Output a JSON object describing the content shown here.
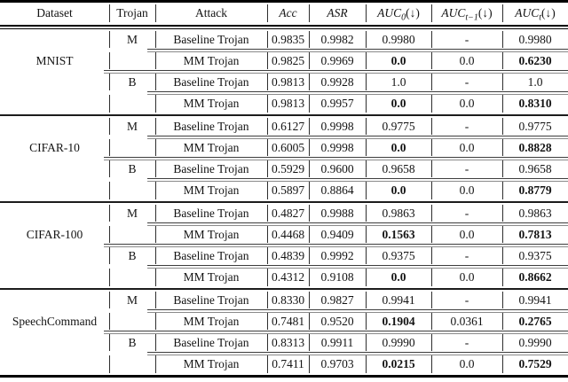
{
  "table": {
    "headers": [
      {
        "key": "dataset",
        "text": "Dataset",
        "italic": false,
        "sub": "",
        "suffix": ""
      },
      {
        "key": "trojan",
        "text": "Trojan",
        "italic": false,
        "sub": "",
        "suffix": ""
      },
      {
        "key": "attack",
        "text": "Attack",
        "italic": false,
        "sub": "",
        "suffix": ""
      },
      {
        "key": "acc",
        "text": "Acc",
        "italic": true,
        "sub": "",
        "suffix": ""
      },
      {
        "key": "asr",
        "text": "ASR",
        "italic": true,
        "sub": "",
        "suffix": ""
      },
      {
        "key": "auc0",
        "text": "AUC",
        "italic": true,
        "sub": "0",
        "suffix": " (↓)"
      },
      {
        "key": "auct1",
        "text": "AUC",
        "italic": true,
        "sub": "t−1",
        "suffix": " (↓)"
      },
      {
        "key": "auct",
        "text": "AUC",
        "italic": true,
        "sub": "t",
        "suffix": " (↓)"
      }
    ],
    "sections": [
      {
        "dataset": "MNIST",
        "groups": [
          {
            "trojan": "M",
            "rows": [
              {
                "attack": "Baseline Trojan",
                "acc": "0.9835",
                "asr": "0.9982",
                "auc0": "0.9980",
                "auct1": "-",
                "auct": "0.9980",
                "bold": []
              },
              {
                "attack": "MM Trojan",
                "acc": "0.9825",
                "asr": "0.9969",
                "auc0": "0.0",
                "auct1": "0.0",
                "auct": "0.6230",
                "bold": [
                  "auc0",
                  "auct"
                ]
              }
            ]
          },
          {
            "trojan": "B",
            "rows": [
              {
                "attack": "Baseline Trojan",
                "acc": "0.9813",
                "asr": "0.9928",
                "auc0": "1.0",
                "auct1": "-",
                "auct": "1.0",
                "bold": []
              },
              {
                "attack": "MM Trojan",
                "acc": "0.9813",
                "asr": "0.9957",
                "auc0": "0.0",
                "auct1": "0.0",
                "auct": "0.8310",
                "bold": [
                  "auc0",
                  "auct"
                ]
              }
            ]
          }
        ]
      },
      {
        "dataset": "CIFAR-10",
        "groups": [
          {
            "trojan": "M",
            "rows": [
              {
                "attack": "Baseline Trojan",
                "acc": "0.6127",
                "asr": "0.9998",
                "auc0": "0.9775",
                "auct1": "-",
                "auct": "0.9775",
                "bold": []
              },
              {
                "attack": "MM Trojan",
                "acc": "0.6005",
                "asr": "0.9998",
                "auc0": "0.0",
                "auct1": "0.0",
                "auct": "0.8828",
                "bold": [
                  "auc0",
                  "auct"
                ]
              }
            ]
          },
          {
            "trojan": "B",
            "rows": [
              {
                "attack": "Baseline Trojan",
                "acc": "0.5929",
                "asr": "0.9600",
                "auc0": "0.9658",
                "auct1": "-",
                "auct": "0.9658",
                "bold": []
              },
              {
                "attack": "MM Trojan",
                "acc": "0.5897",
                "asr": "0.8864",
                "auc0": "0.0",
                "auct1": "0.0",
                "auct": "0.8779",
                "bold": [
                  "auc0",
                  "auct"
                ]
              }
            ]
          }
        ]
      },
      {
        "dataset": "CIFAR-100",
        "groups": [
          {
            "trojan": "M",
            "rows": [
              {
                "attack": "Baseline Trojan",
                "acc": "0.4827",
                "asr": "0.9988",
                "auc0": "0.9863",
                "auct1": "-",
                "auct": "0.9863",
                "bold": []
              },
              {
                "attack": "MM Trojan",
                "acc": "0.4468",
                "asr": "0.9409",
                "auc0": "0.1563",
                "auct1": "0.0",
                "auct": "0.7813",
                "bold": [
                  "auc0",
                  "auct"
                ]
              }
            ]
          },
          {
            "trojan": "B",
            "rows": [
              {
                "attack": "Baseline Trojan",
                "acc": "0.4839",
                "asr": "0.9992",
                "auc0": "0.9375",
                "auct1": "-",
                "auct": "0.9375",
                "bold": []
              },
              {
                "attack": "MM Trojan",
                "acc": "0.4312",
                "asr": "0.9108",
                "auc0": "0.0",
                "auct1": "0.0",
                "auct": "0.8662",
                "bold": [
                  "auc0",
                  "auct"
                ]
              }
            ]
          }
        ]
      },
      {
        "dataset": "SpeechCommand",
        "groups": [
          {
            "trojan": "M",
            "rows": [
              {
                "attack": "Baseline Trojan",
                "acc": "0.8330",
                "asr": "0.9827",
                "auc0": "0.9941",
                "auct1": "-",
                "auct": "0.9941",
                "bold": []
              },
              {
                "attack": "MM Trojan",
                "acc": "0.7481",
                "asr": "0.9520",
                "auc0": "0.1904",
                "auct1": "0.0361",
                "auct": "0.2765",
                "bold": [
                  "auc0",
                  "auct"
                ]
              }
            ]
          },
          {
            "trojan": "B",
            "rows": [
              {
                "attack": "Baseline Trojan",
                "acc": "0.8313",
                "asr": "0.9911",
                "auc0": "0.9990",
                "auct1": "-",
                "auct": "0.9990",
                "bold": []
              },
              {
                "attack": "MM Trojan",
                "acc": "0.7411",
                "asr": "0.9703",
                "auc0": "0.0215",
                "auct1": "0.0",
                "auct": "0.7529",
                "bold": [
                  "auc0",
                  "auct"
                ]
              }
            ]
          }
        ]
      }
    ]
  }
}
